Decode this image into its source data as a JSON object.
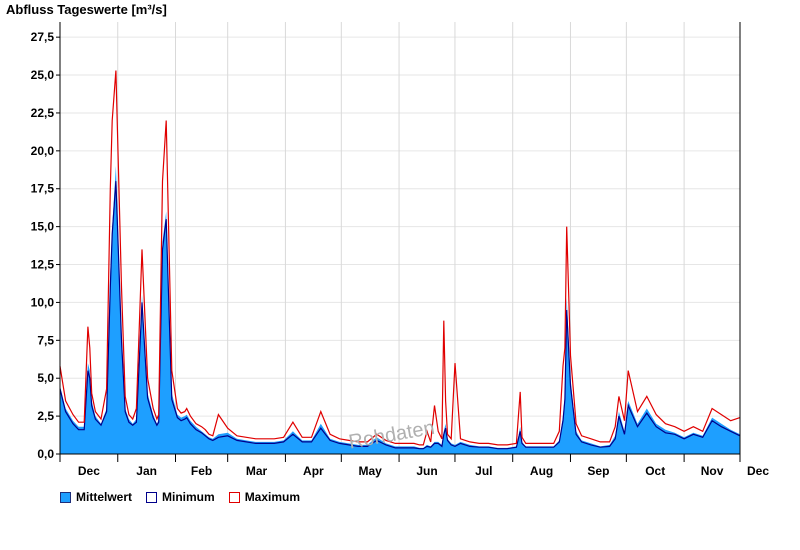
{
  "chart_data": {
    "type": "area",
    "title": "Abfluss Tageswerte [m³/s]",
    "ylim": [
      0,
      28.5
    ],
    "yticks": [
      "0,0",
      "2,5",
      "5,0",
      "7,5",
      "10,0",
      "12,5",
      "15,0",
      "17,5",
      "20,0",
      "22,5",
      "25,0",
      "27,5"
    ],
    "ytick_values": [
      0,
      2.5,
      5,
      7.5,
      10,
      12.5,
      15,
      17.5,
      20,
      22.5,
      25,
      27.5
    ],
    "xticks": [
      "Dec",
      "Jan",
      "Feb",
      "Mar",
      "Apr",
      "May",
      "Jun",
      "Jul",
      "Aug",
      "Sep",
      "Oct",
      "Nov",
      "Dec"
    ],
    "x_unit": "days since start of December",
    "xlim": [
      0,
      365
    ],
    "grid": true,
    "legend_position": "bottom-left",
    "watermark": "Rohdaten",
    "series": [
      {
        "name": "Mittelwert",
        "style": "area",
        "color": "#1e9fff",
        "x": [
          0,
          3,
          7,
          10,
          13,
          15,
          16,
          17,
          19,
          22,
          25,
          27,
          28,
          30,
          33,
          35,
          37,
          39,
          41,
          44,
          47,
          50,
          52,
          53,
          55,
          57,
          60,
          63,
          65,
          67,
          68,
          70,
          73,
          76,
          78,
          80,
          82,
          85,
          90,
          95,
          100,
          105,
          110,
          115,
          120,
          125,
          130,
          135,
          140,
          145,
          150,
          155,
          160,
          165,
          170,
          175,
          180,
          185,
          190,
          193,
          195,
          197,
          199,
          201,
          203,
          205,
          206,
          207,
          208,
          210,
          212,
          215,
          220,
          225,
          230,
          235,
          240,
          245,
          247,
          248,
          250,
          255,
          260,
          265,
          268,
          270,
          271,
          272,
          274,
          277,
          280,
          285,
          290,
          295,
          298,
          300,
          303,
          305,
          310,
          315,
          320,
          325,
          330,
          335,
          340,
          345,
          350,
          355,
          360,
          365
        ],
        "y": [
          4.5,
          3.0,
          2.2,
          1.8,
          1.8,
          6.0,
          5.5,
          3.5,
          2.5,
          2.0,
          3.0,
          12.0,
          15.0,
          19.0,
          8.0,
          3.0,
          2.3,
          2.0,
          2.3,
          10.5,
          4.0,
          2.6,
          2.0,
          2.3,
          14.0,
          16.0,
          4.0,
          2.6,
          2.4,
          2.5,
          2.6,
          2.2,
          1.8,
          1.5,
          1.3,
          1.1,
          1.0,
          1.3,
          1.4,
          1.0,
          0.9,
          0.8,
          0.8,
          0.8,
          0.9,
          1.5,
          0.9,
          0.9,
          2.0,
          1.0,
          0.8,
          0.7,
          0.6,
          0.6,
          1.1,
          0.7,
          0.5,
          0.5,
          0.5,
          0.4,
          0.4,
          0.6,
          0.5,
          0.8,
          0.8,
          0.6,
          1.5,
          2.0,
          1.0,
          0.7,
          0.6,
          0.8,
          0.6,
          0.5,
          0.5,
          0.4,
          0.4,
          0.5,
          1.8,
          0.8,
          0.5,
          0.5,
          0.5,
          0.5,
          0.9,
          2.5,
          4.0,
          10.3,
          5.0,
          1.5,
          0.9,
          0.7,
          0.5,
          0.6,
          1.2,
          2.8,
          1.5,
          3.5,
          2.0,
          3.0,
          2.0,
          1.6,
          1.4,
          1.1,
          1.4,
          1.2,
          2.4,
          2.0,
          1.6,
          1.3
        ]
      },
      {
        "name": "Minimum",
        "style": "line",
        "color": "#00008b",
        "x": [
          0,
          3,
          7,
          10,
          13,
          15,
          16,
          17,
          19,
          22,
          25,
          27,
          28,
          30,
          33,
          35,
          37,
          39,
          41,
          44,
          47,
          50,
          52,
          53,
          55,
          57,
          60,
          63,
          65,
          67,
          68,
          70,
          73,
          76,
          78,
          80,
          82,
          85,
          90,
          95,
          100,
          105,
          110,
          115,
          120,
          125,
          130,
          135,
          140,
          145,
          150,
          155,
          160,
          165,
          170,
          175,
          180,
          185,
          190,
          193,
          195,
          197,
          199,
          201,
          203,
          205,
          206,
          207,
          208,
          210,
          212,
          215,
          220,
          225,
          230,
          235,
          240,
          245,
          247,
          248,
          250,
          255,
          260,
          265,
          268,
          270,
          271,
          272,
          274,
          277,
          280,
          285,
          290,
          295,
          298,
          300,
          303,
          305,
          310,
          315,
          320,
          325,
          330,
          335,
          340,
          345,
          350,
          355,
          360,
          365
        ],
        "y": [
          4.3,
          2.8,
          2.0,
          1.6,
          1.6,
          5.5,
          5.0,
          3.2,
          2.3,
          1.9,
          2.8,
          11.0,
          14.5,
          18.0,
          7.5,
          2.8,
          2.1,
          1.9,
          2.1,
          10.0,
          3.7,
          2.4,
          1.9,
          2.1,
          13.5,
          15.5,
          3.6,
          2.4,
          2.2,
          2.3,
          2.4,
          2.0,
          1.6,
          1.4,
          1.2,
          1.0,
          0.9,
          1.1,
          1.2,
          0.9,
          0.8,
          0.7,
          0.7,
          0.7,
          0.8,
          1.3,
          0.8,
          0.8,
          1.7,
          0.9,
          0.7,
          0.6,
          0.5,
          0.5,
          0.9,
          0.6,
          0.4,
          0.4,
          0.4,
          0.35,
          0.35,
          0.5,
          0.45,
          0.7,
          0.7,
          0.5,
          1.3,
          1.7,
          0.9,
          0.6,
          0.5,
          0.7,
          0.5,
          0.45,
          0.45,
          0.35,
          0.35,
          0.45,
          1.5,
          0.7,
          0.45,
          0.45,
          0.45,
          0.45,
          0.8,
          2.2,
          3.6,
          9.5,
          4.5,
          1.3,
          0.8,
          0.6,
          0.45,
          0.5,
          1.0,
          2.5,
          1.3,
          3.2,
          1.8,
          2.7,
          1.8,
          1.4,
          1.3,
          1.0,
          1.3,
          1.1,
          2.2,
          1.8,
          1.5,
          1.2
        ]
      },
      {
        "name": "Maximum",
        "style": "line",
        "color": "#e00000",
        "x": [
          0,
          3,
          7,
          10,
          13,
          15,
          16,
          17,
          19,
          22,
          25,
          27,
          28,
          30,
          33,
          35,
          37,
          39,
          41,
          44,
          47,
          50,
          52,
          53,
          55,
          57,
          60,
          63,
          65,
          67,
          68,
          70,
          73,
          76,
          78,
          80,
          82,
          85,
          90,
          95,
          100,
          105,
          110,
          115,
          120,
          125,
          130,
          135,
          140,
          145,
          150,
          155,
          160,
          165,
          170,
          175,
          180,
          185,
          190,
          193,
          195,
          197,
          199,
          201,
          203,
          205,
          206,
          207,
          208,
          210,
          212,
          215,
          220,
          225,
          230,
          235,
          240,
          245,
          247,
          248,
          250,
          255,
          260,
          265,
          268,
          270,
          271,
          272,
          274,
          277,
          280,
          285,
          290,
          295,
          298,
          300,
          303,
          305,
          310,
          315,
          320,
          325,
          330,
          335,
          340,
          345,
          350,
          355,
          360,
          365
        ],
        "y": [
          5.8,
          3.5,
          2.6,
          2.1,
          2.1,
          8.4,
          7.0,
          4.0,
          2.8,
          2.3,
          4.3,
          17.5,
          22.0,
          25.3,
          11.0,
          3.8,
          2.6,
          2.3,
          3.0,
          13.5,
          5.0,
          3.0,
          2.3,
          2.6,
          18.0,
          22.0,
          5.5,
          3.0,
          2.7,
          2.8,
          3.0,
          2.5,
          2.0,
          1.8,
          1.6,
          1.3,
          1.2,
          2.6,
          1.7,
          1.2,
          1.1,
          1.0,
          1.0,
          1.0,
          1.1,
          2.1,
          1.1,
          1.1,
          2.8,
          1.3,
          1.0,
          0.9,
          0.8,
          0.8,
          1.3,
          0.9,
          0.7,
          0.7,
          0.7,
          0.6,
          0.6,
          1.5,
          0.8,
          3.2,
          1.5,
          1.0,
          8.8,
          3.5,
          1.3,
          1.0,
          6.0,
          1.0,
          0.8,
          0.7,
          0.7,
          0.6,
          0.6,
          0.7,
          4.1,
          1.1,
          0.7,
          0.7,
          0.7,
          0.7,
          1.5,
          5.8,
          7.0,
          15.0,
          6.5,
          2.0,
          1.2,
          1.0,
          0.8,
          0.8,
          1.8,
          3.8,
          2.2,
          5.5,
          2.8,
          3.8,
          2.6,
          2.0,
          1.8,
          1.5,
          1.8,
          1.5,
          3.0,
          2.6,
          2.2,
          2.4
        ]
      }
    ]
  },
  "legend": {
    "items": [
      {
        "label": "Mittelwert",
        "fill": "#1e9fff",
        "border": "#1e2e7a"
      },
      {
        "label": "Minimum",
        "fill": "#ffffff",
        "border": "#00008b"
      },
      {
        "label": "Maximum",
        "fill": "#ffffff",
        "border": "#e00000"
      }
    ]
  }
}
